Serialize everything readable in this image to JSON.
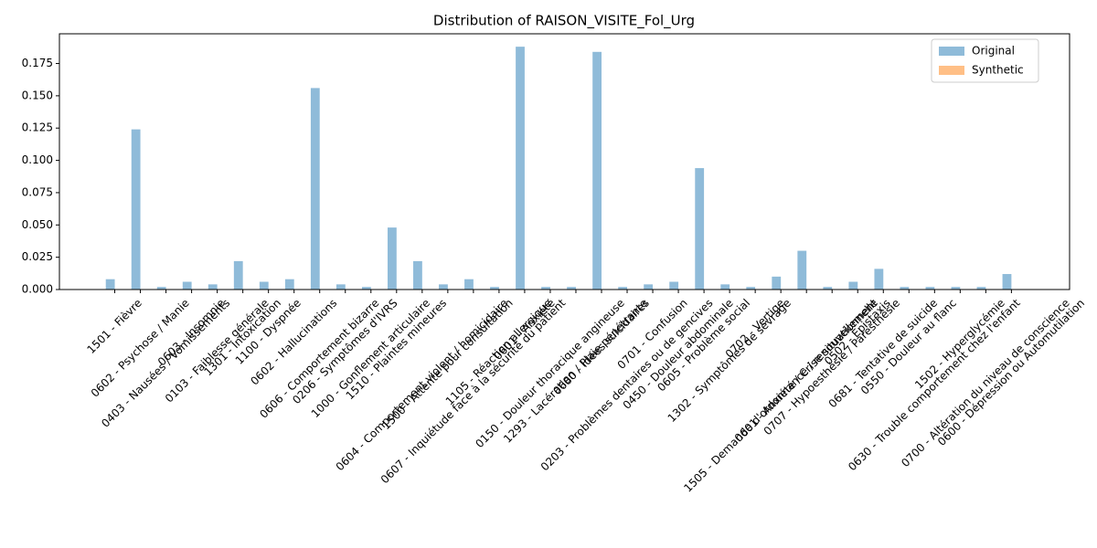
{
  "chart_data": {
    "type": "bar",
    "title": "Distribution of RAISON_VISITE_Fol_Urg",
    "categories": [
      "1501 - Fièvre",
      "0602 - Psychose / Manie",
      "0403 - Nausées / Vomissements",
      "0603 - Insomnie",
      "0103 - Faiblesse générale",
      "1301 - Intoxication",
      "1100 - Dyspnée",
      "0602 - Hallucinations",
      "0606 - Comportement bizarre",
      "0206 - Symptômes d'IVRS",
      "1000 - Gonflement articulaire",
      "1510 - Plaintes mineures",
      "0604 - Comportement violent / homicidaire",
      "1500 - Attente pour consultation",
      "0607 - Inquiétude face à la sécurité du patient",
      "1105 - Réaction allergique",
      "0601 - Anxiété",
      "0150 - Douleur thoracique angineuse",
      "1293 - Lacération / Plaie pénétrante",
      "0680 - Idées suicidaires",
      "0203 - Problèmes dentaires ou de gencives",
      "0701 - Confusion",
      "0450 - Douleur abdominale",
      "0605 - Problème social",
      "1302 - Symptômes de sevrage",
      "0702 - Vertige",
      "1505 - Demande d'ordonnance / renouvellement",
      "0601 - Anxiété / Crise situationnelle",
      "0707 - Hypoesthésie / Paresthésie",
      "0502 - Épistaxis",
      "0681 - Tentative de suicide",
      "0550 - Douleur au flanc",
      "0630 - Trouble comportement chez l'enfant",
      "1502 - Hyperglycémie",
      "0700 - Altération du niveau de conscience",
      "0600 - Dépression ou Automutilation"
    ],
    "series": [
      {
        "name": "Original",
        "color": "#1f77b4",
        "values": [
          0.008,
          0.124,
          0.002,
          0.006,
          0.004,
          0.022,
          0.006,
          0.008,
          0.156,
          0.004,
          0.002,
          0.048,
          0.022,
          0.004,
          0.008,
          0.002,
          0.188,
          0.002,
          0.002,
          0.184,
          0.002,
          0.004,
          0.006,
          0.094,
          0.004,
          0.002,
          0.01,
          0.03,
          0.002,
          0.006,
          0.016,
          0.002,
          0.002,
          0.002,
          0.002,
          0.012
        ]
      },
      {
        "name": "Synthetic",
        "color": "#ff7f0e",
        "values": [
          0,
          0,
          0,
          0,
          0,
          0,
          0,
          0,
          0,
          0,
          0,
          0,
          0,
          0,
          0,
          0,
          0,
          0,
          0,
          0,
          0,
          0,
          0,
          0,
          0,
          0,
          0,
          0,
          0,
          0,
          0,
          0,
          0,
          0,
          0,
          0
        ]
      }
    ],
    "ylim": [
      0,
      0.198
    ],
    "yticks": [
      {
        "value": 0,
        "label": "0.000"
      },
      {
        "value": 0.025,
        "label": "0.025"
      },
      {
        "value": 0.05,
        "label": "0.050"
      },
      {
        "value": 0.075,
        "label": "0.075"
      },
      {
        "value": 0.1,
        "label": "0.100"
      },
      {
        "value": 0.125,
        "label": "0.125"
      },
      {
        "value": 0.15,
        "label": "0.150"
      },
      {
        "value": 0.175,
        "label": "0.175"
      }
    ],
    "opacity": 0.5,
    "legend": "upper right",
    "grid": false
  }
}
